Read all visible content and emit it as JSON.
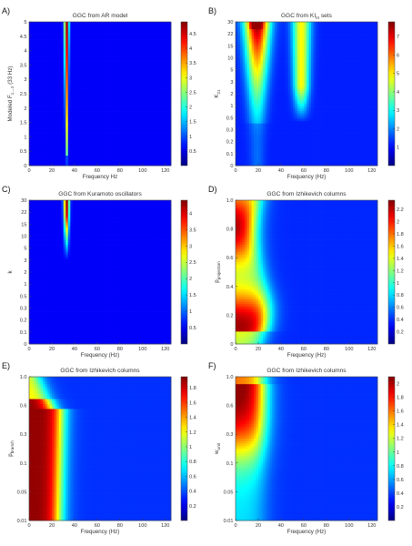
{
  "figure": {
    "panels": [
      "A",
      "B",
      "C",
      "D",
      "E",
      "F"
    ]
  },
  "chart_data": [
    {
      "panel_label": "A)",
      "type": "heatmap",
      "title": "GGC from AR model",
      "xlabel": "Frequency Hz",
      "ylabel": "Modeled F",
      "ylabel_sub": "1→2",
      "ylabel_suffix": " (33 Hz)",
      "xlim": [
        0,
        125
      ],
      "x_ticks": [
        "0",
        "20",
        "40",
        "60",
        "80",
        "100",
        "120"
      ],
      "y_ticks": [
        "0",
        "0.5",
        "1",
        "1.5",
        "2",
        "2.5",
        "3",
        "3.5",
        "4",
        "4.5",
        "5"
      ],
      "colorbar_ticks": [
        "0.5",
        "1",
        "1.5",
        "2",
        "2.5",
        "3",
        "3.5",
        "4",
        "4.5"
      ],
      "clim": [
        0,
        4.9
      ],
      "peaks": [
        {
          "frequency_hz": 33,
          "description": "narrow ridge at 33 Hz spanning the full y range, strongest near y = 5"
        }
      ]
    },
    {
      "panel_label": "B)",
      "type": "heatmap",
      "title": "GGC from KI",
      "title_sub": "III",
      "title_suffix": " sets",
      "xlabel": "Frequency (Hz)",
      "ylabel": "K",
      "ylabel_sub": "21",
      "xlim": [
        0,
        125
      ],
      "x_ticks": [
        "0",
        "20",
        "40",
        "60",
        "80",
        "100",
        "120"
      ],
      "y_ticks": [
        "0",
        "0.1",
        "0.2",
        "0.3",
        "0.5",
        "1",
        "2",
        "3",
        "5",
        "10",
        "15",
        "22",
        "30"
      ],
      "colorbar_ticks": [
        "1",
        "2",
        "3",
        "4",
        "5",
        "6",
        "7"
      ],
      "clim": [
        0,
        7.8
      ],
      "peaks": [
        {
          "frequency_hz": 18,
          "description": "strong peak near K21 = 30, extending down to ~1"
        },
        {
          "frequency_hz": 58,
          "description": "moderate band from K21 ~1 to 30"
        }
      ]
    },
    {
      "panel_label": "C)",
      "type": "heatmap",
      "title": "GGC from Kuramoto oscillators",
      "xlabel": "Frequency (Hz)",
      "ylabel": "k",
      "xlim": [
        0,
        125
      ],
      "x_ticks": [
        "0",
        "20",
        "40",
        "60",
        "80",
        "100",
        "120"
      ],
      "y_ticks": [
        "0",
        "0.1",
        "0.2",
        "0.3",
        "0.5",
        "1",
        "2",
        "3",
        "5",
        "10",
        "15",
        "22",
        "30"
      ],
      "colorbar_ticks": [
        "0.5",
        "1",
        "1.5",
        "2",
        "2.5",
        "3",
        "3.5",
        "4"
      ],
      "clim": [
        0,
        4.4
      ],
      "peaks": [
        {
          "frequency_hz": 33,
          "description": "narrow ridge at 33 Hz for k above ~5, strongest at k = 30"
        }
      ]
    },
    {
      "panel_label": "D)",
      "type": "heatmap",
      "title": "GGC from Izhikevich columns",
      "xlabel": "Frequency (Hz)",
      "ylabel": "p",
      "ylabel_sub": "projection",
      "xlim": [
        0,
        125
      ],
      "x_ticks": [
        "0",
        "20",
        "40",
        "60",
        "80",
        "100",
        "120"
      ],
      "y_ticks": [
        "0",
        "0.2",
        "0.4",
        "0.6",
        "0.8",
        "1.0"
      ],
      "colorbar_ticks": [
        "0.2",
        "0.4",
        "0.6",
        "0.8",
        "1",
        "1.2",
        "1.4",
        "1.6",
        "1.8",
        "2",
        "2.2"
      ],
      "clim": [
        0,
        2.35
      ],
      "peaks": [
        {
          "frequency_hz": 10,
          "description": "broad high band from 0 to ~25 Hz across p_projection 0.1 to 1.0"
        }
      ]
    },
    {
      "panel_label": "E)",
      "type": "heatmap",
      "title": "GGC from Izhikevich columns",
      "xlabel": "Frequency (Hz)",
      "ylabel": "p",
      "ylabel_sub": "branch",
      "xlim": [
        0,
        125
      ],
      "x_ticks": [
        "0",
        "20",
        "40",
        "60",
        "80",
        "100",
        "120"
      ],
      "y_ticks": [
        "0.01",
        "0.05",
        "0.1",
        "0.3",
        "0.6",
        "1.0"
      ],
      "colorbar_ticks": [
        "0.2",
        "0.4",
        "0.6",
        "0.8",
        "1",
        "1.2",
        "1.4",
        "1.6",
        "1.8"
      ],
      "clim": [
        0,
        1.95
      ],
      "peaks": [
        {
          "frequency_hz": 10,
          "description": "broad high band from 0 to ~25 Hz for p_branch up to ~0.6"
        }
      ]
    },
    {
      "panel_label": "F)",
      "type": "heatmap",
      "title": "GGC from Izhikevich columns",
      "xlabel": "Frequency (Hz)",
      "ylabel": "w",
      "ylabel_sub": "unit",
      "xlim": [
        0,
        125
      ],
      "x_ticks": [
        "0",
        "20",
        "40",
        "60",
        "80",
        "100",
        "120"
      ],
      "y_ticks": [
        "0.01",
        "0.05",
        "0.1",
        "0.3",
        "0.6",
        "1.0"
      ],
      "colorbar_ticks": [
        "0.2",
        "0.4",
        "0.6",
        "0.8",
        "1",
        "1.2",
        "1.4",
        "1.6",
        "1.8",
        "2"
      ],
      "clim": [
        0,
        2.1
      ],
      "peaks": [
        {
          "frequency_hz": 10,
          "description": "high band from 0 to ~25 Hz for w_unit above ~0.3, fading toward 0.01"
        }
      ]
    }
  ]
}
